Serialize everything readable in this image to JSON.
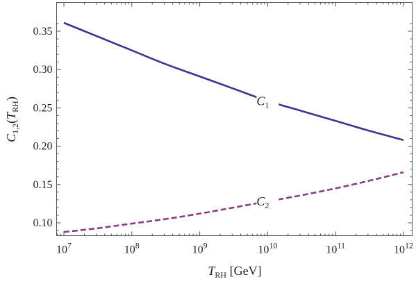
{
  "chart_data": {
    "type": "line",
    "title": "",
    "xlabel": {
      "symbol": "T",
      "subscript": "RH",
      "unit": " [GeV]"
    },
    "ylabel": {
      "symbol": "C",
      "subscript": "1,2",
      "open": "(",
      "arg_symbol": "T",
      "arg_subscript": "RH",
      "close": ")"
    },
    "x_scale": "log",
    "xlim": [
      10000000.0,
      1000000000000.0
    ],
    "ylim": [
      0.08,
      0.37
    ],
    "x_ticks": [
      {
        "value": 10000000.0,
        "base": "10",
        "exp": "7"
      },
      {
        "value": 100000000.0,
        "base": "10",
        "exp": "8"
      },
      {
        "value": 1000000000.0,
        "base": "10",
        "exp": "9"
      },
      {
        "value": 10000000000.0,
        "base": "10",
        "exp": "10"
      },
      {
        "value": 100000000000.0,
        "base": "10",
        "exp": "11"
      },
      {
        "value": 1000000000000.0,
        "base": "10",
        "exp": "12"
      }
    ],
    "y_ticks": [
      {
        "value": 0.1,
        "label": "0.10"
      },
      {
        "value": 0.15,
        "label": "0.15"
      },
      {
        "value": 0.2,
        "label": "0.20"
      },
      {
        "value": 0.25,
        "label": "0.25"
      },
      {
        "value": 0.3,
        "label": "0.30"
      },
      {
        "value": 0.35,
        "label": "0.35"
      }
    ],
    "grid": false,
    "series": [
      {
        "name": "C1",
        "label_symbol": "C",
        "label_sub": "1",
        "color": "#3b3491",
        "dashed": false,
        "label_at_x": 10000000000.0,
        "x": [
          10000000.0,
          31600000.0,
          100000000.0,
          316000000.0,
          1000000000.0,
          3160000000.0,
          10000000000.0,
          31600000000.0,
          100000000000.0,
          316000000000.0,
          1000000000000.0
        ],
        "y": [
          0.361,
          0.343,
          0.325,
          0.307,
          0.291,
          0.275,
          0.259,
          0.246,
          0.233,
          0.22,
          0.208
        ]
      },
      {
        "name": "C2",
        "label_symbol": "C",
        "label_sub": "2",
        "color": "#8e3a82",
        "dashed": true,
        "label_at_x": 10000000000.0,
        "x": [
          10000000.0,
          31600000.0,
          100000000.0,
          316000000.0,
          1000000000.0,
          3160000000.0,
          10000000000.0,
          31600000000.0,
          100000000000.0,
          316000000000.0,
          1000000000000.0
        ],
        "y": [
          0.088,
          0.093,
          0.099,
          0.105,
          0.112,
          0.12,
          0.128,
          0.136,
          0.145,
          0.155,
          0.166
        ]
      }
    ]
  }
}
